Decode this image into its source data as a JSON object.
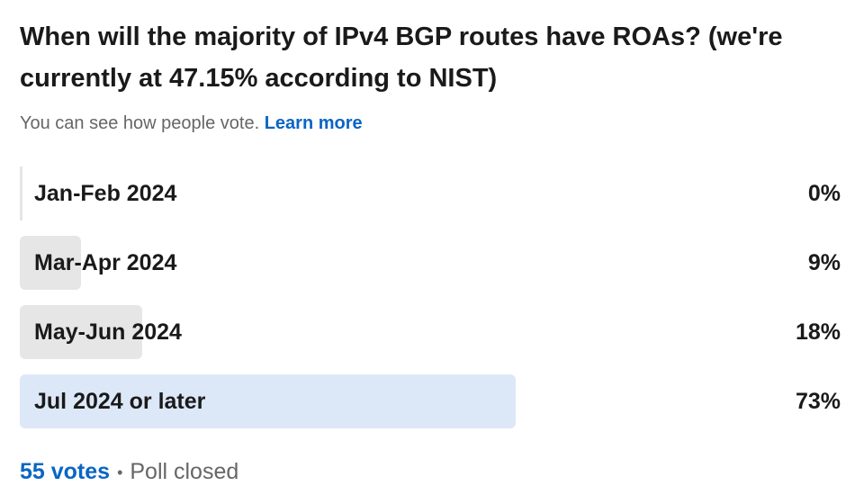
{
  "poll": {
    "question": "When will the majority of IPv4 BGP routes have ROAs? (we're currently at 47.15% according to NIST)",
    "note": "You can see how people vote.",
    "learn_more": "Learn more",
    "options": [
      "Jan-Feb 2024",
      "Mar-Apr 2024",
      "May-Jun 2024",
      "Jul 2024 or later"
    ],
    "values": [
      0,
      9,
      18,
      73
    ],
    "value_labels": [
      "0%",
      "9%",
      "18%",
      "73%"
    ],
    "votes": "55 votes",
    "status": "Poll closed"
  }
}
